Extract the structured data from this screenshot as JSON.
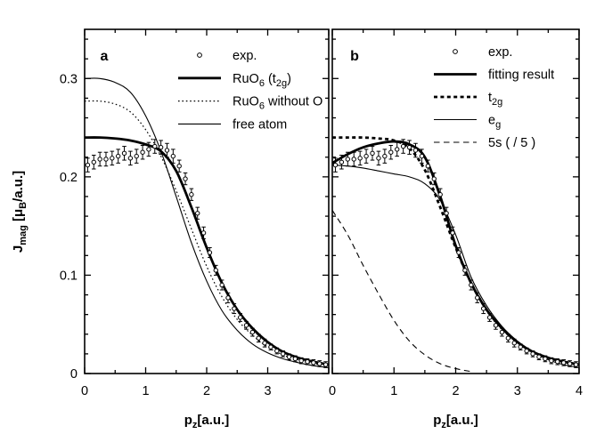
{
  "figure": {
    "background": "#ffffff",
    "ink": "#000000",
    "ylabel_parts": [
      {
        "t": "J"
      },
      {
        "t": "mag",
        "sub": true
      },
      {
        "t": " [μ"
      },
      {
        "t": "B",
        "sub": true
      },
      {
        "t": "/a.u.]"
      }
    ],
    "xlabel_parts": [
      {
        "t": "p"
      },
      {
        "t": "z",
        "sub": true
      },
      {
        "t": "[a.u.]"
      }
    ]
  },
  "chart_data": [
    {
      "type": "line+scatter",
      "panel_label": "a",
      "xlabel": "p_z [a.u.]",
      "ylabel": "J_mag [mu_B/a.u.]",
      "xlim": [
        0,
        4
      ],
      "ylim": [
        0,
        0.35
      ],
      "x_major_ticks": [
        0,
        1,
        2,
        3,
        4
      ],
      "x_tick_labels": [
        {
          "v": 0,
          "s": "0"
        },
        {
          "v": 1,
          "s": "1"
        },
        {
          "v": 2,
          "s": "2"
        },
        {
          "v": 3,
          "s": "3"
        }
      ],
      "x_minor_step": 0.5,
      "y_major_ticks": [
        0,
        0.1,
        0.2,
        0.3
      ],
      "y_tick_labels": [
        {
          "v": 0,
          "s": "0"
        },
        {
          "v": 0.1,
          "s": "0.1"
        },
        {
          "v": 0.2,
          "s": "0.2"
        },
        {
          "v": 0.3,
          "s": "0.3"
        }
      ],
      "y_minor_step": 0.02,
      "grid": false,
      "legend_position": "top-center-inside",
      "legend": [
        {
          "type": "marker",
          "series": "exp",
          "label_parts": [
            {
              "t": "exp."
            }
          ]
        },
        {
          "type": "line",
          "style": "thick_solid",
          "series": "ruo6_t2g",
          "label_parts": [
            {
              "t": "RuO"
            },
            {
              "t": "6",
              "sub": true
            },
            {
              "t": " (t"
            },
            {
              "t": "2g",
              "sub": true
            },
            {
              "t": ")"
            }
          ]
        },
        {
          "type": "line",
          "style": "dotted",
          "series": "ruo6_without_o",
          "label_parts": [
            {
              "t": "RuO"
            },
            {
              "t": "6",
              "sub": true
            },
            {
              "t": " without O"
            }
          ]
        },
        {
          "type": "line",
          "style": "thin_solid",
          "series": "free_atom",
          "label_parts": [
            {
              "t": "free atom"
            }
          ]
        }
      ],
      "scatter": {
        "id": "exp",
        "marker": "open-circle",
        "x": [
          0.05,
          0.15,
          0.25,
          0.35,
          0.45,
          0.55,
          0.65,
          0.75,
          0.85,
          0.95,
          1.05,
          1.15,
          1.25,
          1.35,
          1.45,
          1.55,
          1.65,
          1.75,
          1.85,
          1.95,
          2.05,
          2.15,
          2.25,
          2.35,
          2.45,
          2.55,
          2.65,
          2.75,
          2.85,
          2.95,
          3.05,
          3.15,
          3.25,
          3.35,
          3.45,
          3.55,
          3.65,
          3.75,
          3.85,
          3.95
        ],
        "y": [
          0.212,
          0.215,
          0.218,
          0.218,
          0.219,
          0.221,
          0.224,
          0.219,
          0.221,
          0.225,
          0.228,
          0.231,
          0.23,
          0.227,
          0.221,
          0.211,
          0.198,
          0.182,
          0.163,
          0.143,
          0.123,
          0.105,
          0.09,
          0.077,
          0.066,
          0.057,
          0.049,
          0.042,
          0.036,
          0.031,
          0.027,
          0.023,
          0.02,
          0.017,
          0.015,
          0.013,
          0.012,
          0.011,
          0.01,
          0.009
        ],
        "yerr": [
          0.007,
          0.007,
          0.007,
          0.007,
          0.007,
          0.007,
          0.007,
          0.007,
          0.007,
          0.007,
          0.007,
          0.007,
          0.007,
          0.007,
          0.007,
          0.006,
          0.006,
          0.006,
          0.006,
          0.006,
          0.005,
          0.005,
          0.005,
          0.005,
          0.005,
          0.004,
          0.004,
          0.004,
          0.004,
          0.004,
          0.003,
          0.003,
          0.003,
          0.003,
          0.003,
          0.003,
          0.003,
          0.003,
          0.003,
          0.003
        ]
      },
      "curves": [
        {
          "id": "free_atom",
          "style": "thin_solid",
          "x": [
            0,
            0.25,
            0.5,
            0.75,
            1,
            1.25,
            1.5,
            1.75,
            2,
            2.25,
            2.5,
            2.75,
            3,
            3.25,
            3.5,
            3.75,
            4
          ],
          "y": [
            0.3,
            0.3,
            0.296,
            0.286,
            0.262,
            0.226,
            0.18,
            0.133,
            0.094,
            0.064,
            0.044,
            0.03,
            0.021,
            0.015,
            0.011,
            0.008,
            0.006
          ]
        },
        {
          "id": "ruo6_without_o",
          "style": "dotted",
          "x": [
            0,
            0.25,
            0.5,
            0.75,
            1,
            1.25,
            1.5,
            1.75,
            2,
            2.25,
            2.5,
            2.75,
            3,
            3.25,
            3.5,
            3.75,
            4
          ],
          "y": [
            0.277,
            0.277,
            0.274,
            0.266,
            0.248,
            0.221,
            0.186,
            0.147,
            0.109,
            0.078,
            0.055,
            0.039,
            0.027,
            0.019,
            0.014,
            0.01,
            0.008
          ]
        },
        {
          "id": "ruo6_t2g",
          "style": "thick_solid",
          "x": [
            0,
            0.25,
            0.5,
            0.75,
            1,
            1.25,
            1.5,
            1.75,
            2,
            2.25,
            2.5,
            2.75,
            3,
            3.25,
            3.5,
            3.75,
            4
          ],
          "y": [
            0.24,
            0.24,
            0.239,
            0.237,
            0.233,
            0.226,
            0.206,
            0.169,
            0.128,
            0.092,
            0.065,
            0.046,
            0.032,
            0.022,
            0.016,
            0.012,
            0.009
          ]
        }
      ]
    },
    {
      "type": "line+scatter",
      "panel_label": "b",
      "xlabel": "p_z [a.u.]",
      "ylabel": "",
      "xlim": [
        0,
        4
      ],
      "ylim": [
        0,
        0.35
      ],
      "x_major_ticks": [
        0,
        1,
        2,
        3,
        4
      ],
      "x_tick_labels": [
        {
          "v": 0,
          "s": "0"
        },
        {
          "v": 1,
          "s": "1"
        },
        {
          "v": 2,
          "s": "2"
        },
        {
          "v": 3,
          "s": "3"
        },
        {
          "v": 4,
          "s": "4"
        }
      ],
      "x_minor_step": 0.5,
      "y_major_ticks": [
        0,
        0.1,
        0.2,
        0.3
      ],
      "y_tick_labels": [],
      "y_minor_step": 0.02,
      "grid": false,
      "legend_position": "top-center-inside",
      "legend": [
        {
          "type": "marker",
          "series": "exp",
          "label_parts": [
            {
              "t": "exp."
            }
          ]
        },
        {
          "type": "line",
          "style": "thick_solid",
          "series": "fitting_result",
          "label_parts": [
            {
              "t": "fitting result"
            }
          ]
        },
        {
          "type": "line",
          "style": "thick_dashed",
          "series": "t2g",
          "label_parts": [
            {
              "t": "t"
            },
            {
              "t": "2g",
              "sub": true
            }
          ]
        },
        {
          "type": "line",
          "style": "thin_solid",
          "series": "e_g",
          "label_parts": [
            {
              "t": "e"
            },
            {
              "t": "g",
              "sub": true
            }
          ]
        },
        {
          "type": "line",
          "style": "dashed",
          "series": "5s",
          "label_parts": [
            {
              "t": "5s ( / 5 )"
            }
          ]
        }
      ],
      "scatter": {
        "id": "exp",
        "marker": "open-circle",
        "x": [
          0.05,
          0.15,
          0.25,
          0.35,
          0.45,
          0.55,
          0.65,
          0.75,
          0.85,
          0.95,
          1.05,
          1.15,
          1.25,
          1.35,
          1.45,
          1.55,
          1.65,
          1.75,
          1.85,
          1.95,
          2.05,
          2.15,
          2.25,
          2.35,
          2.45,
          2.55,
          2.65,
          2.75,
          2.85,
          2.95,
          3.05,
          3.15,
          3.25,
          3.35,
          3.45,
          3.55,
          3.65,
          3.75,
          3.85,
          3.95
        ],
        "y": [
          0.212,
          0.215,
          0.218,
          0.218,
          0.219,
          0.221,
          0.224,
          0.219,
          0.221,
          0.225,
          0.228,
          0.231,
          0.23,
          0.227,
          0.221,
          0.211,
          0.198,
          0.182,
          0.163,
          0.143,
          0.123,
          0.105,
          0.09,
          0.077,
          0.066,
          0.057,
          0.049,
          0.042,
          0.036,
          0.031,
          0.027,
          0.023,
          0.02,
          0.017,
          0.015,
          0.013,
          0.012,
          0.011,
          0.01,
          0.009
        ],
        "yerr": [
          0.007,
          0.007,
          0.007,
          0.007,
          0.007,
          0.007,
          0.007,
          0.007,
          0.007,
          0.007,
          0.007,
          0.007,
          0.007,
          0.007,
          0.007,
          0.006,
          0.006,
          0.006,
          0.006,
          0.006,
          0.005,
          0.005,
          0.005,
          0.005,
          0.005,
          0.004,
          0.004,
          0.004,
          0.004,
          0.004,
          0.003,
          0.003,
          0.003,
          0.003,
          0.003,
          0.003,
          0.003,
          0.003,
          0.003,
          0.003
        ]
      },
      "curves": [
        {
          "id": "5s",
          "style": "dashed",
          "x": [
            0,
            0.25,
            0.5,
            0.75,
            1,
            1.25,
            1.5,
            1.75,
            2,
            2.25
          ],
          "y": [
            0.166,
            0.141,
            0.11,
            0.081,
            0.054,
            0.033,
            0.019,
            0.01,
            0.005,
            0.002
          ]
        },
        {
          "id": "e_g",
          "style": "thin_solid",
          "x": [
            0,
            0.25,
            0.5,
            0.75,
            1,
            1.25,
            1.5,
            1.75,
            2,
            2.25,
            2.5,
            2.75,
            3,
            3.25,
            3.5,
            3.75,
            4
          ],
          "y": [
            0.212,
            0.211,
            0.209,
            0.206,
            0.203,
            0.2,
            0.193,
            0.176,
            0.141,
            0.098,
            0.069,
            0.048,
            0.033,
            0.022,
            0.014,
            0.009,
            0.006
          ]
        },
        {
          "id": "fitting_result",
          "style": "thick_solid",
          "x": [
            0,
            0.25,
            0.5,
            0.75,
            1,
            1.25,
            1.5,
            1.75,
            2,
            2.25,
            2.5,
            2.75,
            3,
            3.25,
            3.5,
            3.75,
            4
          ],
          "y": [
            0.214,
            0.223,
            0.23,
            0.234,
            0.236,
            0.233,
            0.22,
            0.18,
            0.13,
            0.092,
            0.065,
            0.046,
            0.032,
            0.022,
            0.016,
            0.012,
            0.009
          ]
        },
        {
          "id": "t2g",
          "style": "thick_dashed",
          "x": [
            0,
            0.25,
            0.5,
            0.75,
            1,
            1.25,
            1.5,
            1.75,
            2,
            2.25,
            2.5,
            2.75,
            3,
            3.25,
            3.5,
            3.75,
            4
          ],
          "y": [
            0.24,
            0.24,
            0.24,
            0.239,
            0.237,
            0.229,
            0.207,
            0.169,
            0.128,
            0.092,
            0.065,
            0.046,
            0.032,
            0.022,
            0.016,
            0.012,
            0.009
          ]
        }
      ]
    }
  ]
}
